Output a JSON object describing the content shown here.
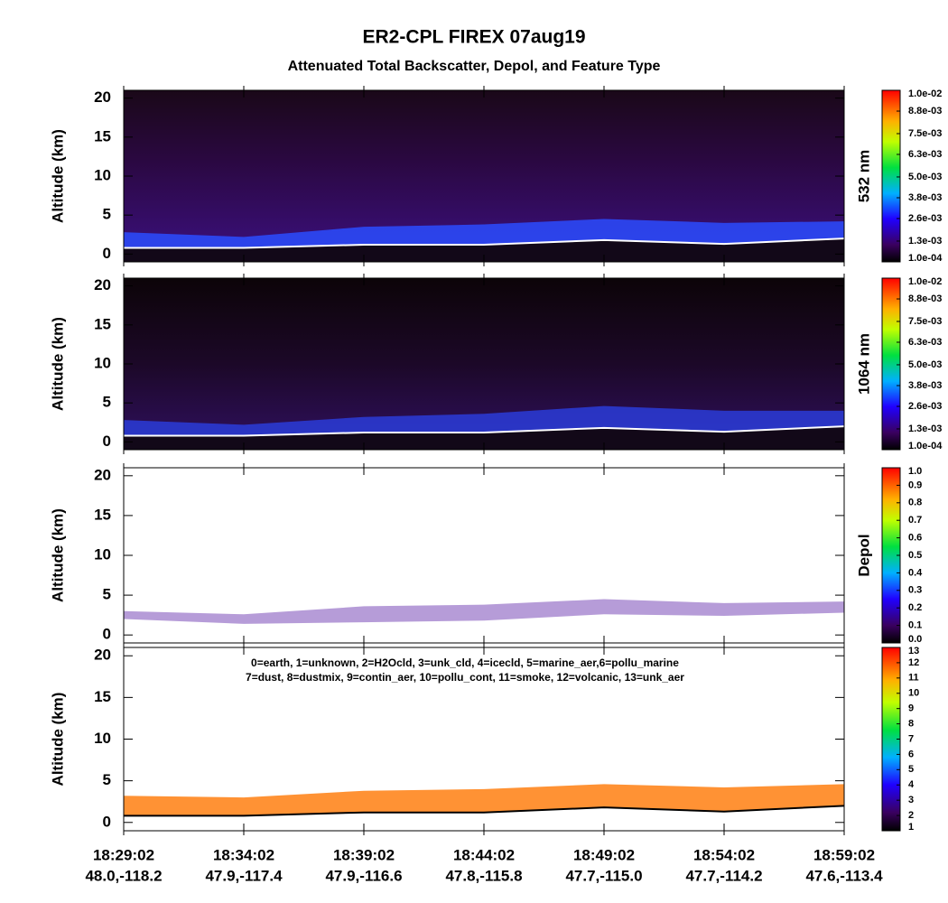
{
  "title": "ER2-CPL FIREX 07aug19",
  "subtitle": "Attenuated Total Backscatter, Depol, and Feature Type",
  "x_axis": {
    "categories": [
      "18:29:02",
      "18:34:02",
      "18:39:02",
      "18:44:02",
      "18:49:02",
      "18:54:02",
      "18:59:02"
    ],
    "positions": [
      "48.0,-118.2",
      "47.9,-117.4",
      "47.9,-116.6",
      "47.8,-115.8",
      "47.7,-115.0",
      "47.7,-114.2",
      "47.6,-113.4"
    ]
  },
  "chart_data": [
    {
      "type": "heatmap",
      "ylabel": "Altitude (km)",
      "ylim": [
        -1,
        21
      ],
      "yticks": [
        0,
        5,
        10,
        15,
        20
      ],
      "colorbar_label": "532 nm",
      "clim": [
        0.0001,
        0.01
      ],
      "cticks": [
        {
          "value": 0.0001,
          "label": "1.0e-04"
        },
        {
          "value": 0.0013,
          "label": "1.3e-03"
        },
        {
          "value": 0.0026,
          "label": "2.6e-03"
        },
        {
          "value": 0.0038,
          "label": "3.8e-03"
        },
        {
          "value": 0.005,
          "label": "5.0e-03"
        },
        {
          "value": 0.0063,
          "label": "6.3e-03"
        },
        {
          "value": 0.0075,
          "label": "7.5e-03"
        },
        {
          "value": 0.0088,
          "label": "8.8e-03"
        },
        {
          "value": 0.01,
          "label": "1.0e-02"
        }
      ],
      "layer_color": "#2a4cff",
      "layer_top": {
        "values": [
          2.8,
          2.2,
          3.5,
          3.8,
          4.5,
          4.0,
          4.2
        ]
      },
      "surface": {
        "color": "#ffffff",
        "values": [
          0.8,
          0.8,
          1.2,
          1.2,
          1.8,
          1.3,
          2.0
        ]
      }
    },
    {
      "type": "heatmap",
      "ylabel": "Altitude (km)",
      "ylim": [
        -1,
        21
      ],
      "yticks": [
        0,
        5,
        10,
        15,
        20
      ],
      "colorbar_label": "1064 nm",
      "clim": [
        0.0001,
        0.01
      ],
      "cticks": [
        {
          "value": 0.0001,
          "label": "1.0e-04"
        },
        {
          "value": 0.0013,
          "label": "1.3e-03"
        },
        {
          "value": 0.0026,
          "label": "2.6e-03"
        },
        {
          "value": 0.0038,
          "label": "3.8e-03"
        },
        {
          "value": 0.005,
          "label": "5.0e-03"
        },
        {
          "value": 0.0063,
          "label": "6.3e-03"
        },
        {
          "value": 0.0075,
          "label": "7.5e-03"
        },
        {
          "value": 0.0088,
          "label": "8.8e-03"
        },
        {
          "value": 0.01,
          "label": "1.0e-02"
        }
      ],
      "layer_color": "#2a3cd8",
      "layer_top": {
        "values": [
          2.8,
          2.2,
          3.2,
          3.6,
          4.6,
          4.0,
          4.0
        ]
      },
      "surface": {
        "color": "#ffffff",
        "values": [
          0.8,
          0.8,
          1.2,
          1.2,
          1.8,
          1.3,
          2.0
        ]
      }
    },
    {
      "type": "heatmap",
      "ylabel": "Altitude (km)",
      "ylim": [
        -1,
        21
      ],
      "yticks": [
        0,
        5,
        10,
        15,
        20
      ],
      "colorbar_label": "Depol",
      "clim": [
        0,
        1
      ],
      "cticks": [
        {
          "value": 0,
          "label": "0.0"
        },
        0.1,
        0.2,
        0.3,
        0.4,
        0.5,
        0.6,
        0.7,
        0.8,
        0.9,
        {
          "value": 1,
          "label": "1.0"
        }
      ],
      "layer_color": "#7a4ab8",
      "layer_top": {
        "values": [
          3.0,
          2.6,
          3.6,
          3.8,
          4.5,
          4.0,
          4.2
        ]
      },
      "surface": {
        "values": [
          2.0,
          1.4,
          1.6,
          1.8,
          2.6,
          2.4,
          2.8
        ]
      }
    },
    {
      "type": "heatmap",
      "ylabel": "Altitude (km)",
      "ylim": [
        -1,
        21
      ],
      "yticks": [
        0,
        5,
        10,
        15,
        20
      ],
      "annotations": [
        "0=earth, 1=unknown, 2=H2Ocld, 3=unk_cld, 4=icecld, 5=marine_aer,6=pollu_marine",
        "7=dust, 8=dustmix, 9=contin_aer, 10=pollu_cont, 11=smoke, 12=volcanic, 13=unk_aer"
      ],
      "clim": [
        1,
        13
      ],
      "cticks": [
        1,
        2,
        3,
        4,
        5,
        6,
        7,
        8,
        9,
        10,
        11,
        12,
        13
      ],
      "layer_color": "#ff7f10",
      "layer_top": {
        "values": [
          3.2,
          3.0,
          3.8,
          4.0,
          4.6,
          4.2,
          4.6
        ]
      },
      "surface": {
        "color": "#000000",
        "values": [
          0.8,
          0.8,
          1.2,
          1.2,
          1.8,
          1.3,
          2.0
        ]
      }
    }
  ]
}
